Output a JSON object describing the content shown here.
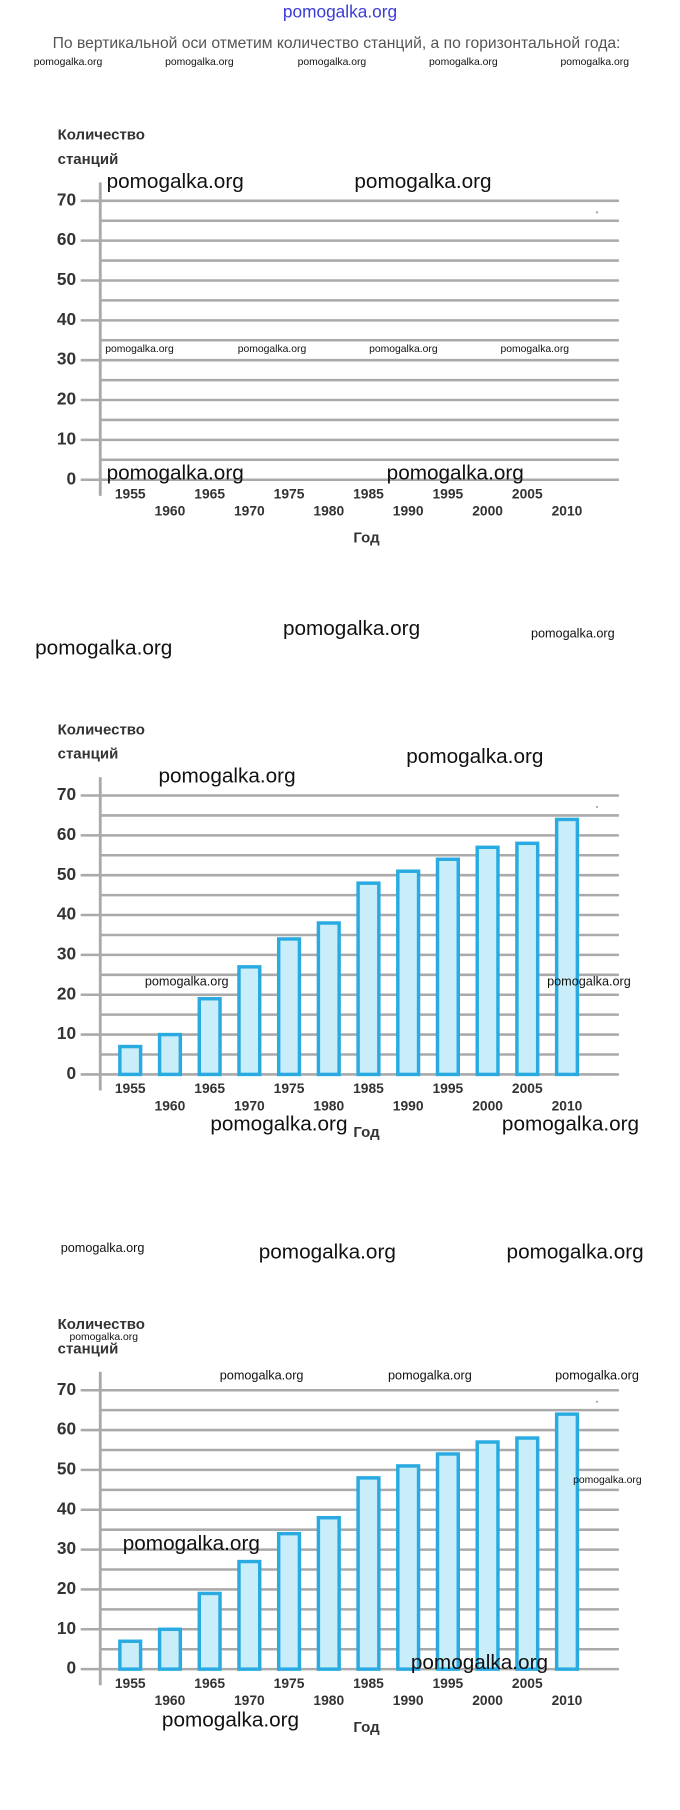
{
  "header": "pomogalka.org",
  "caption": "По вертикальной оси отметим количество станций, а по горизонтальной года:",
  "watermarks": [
    "pomogalka.org",
    "pomogalka.org",
    "pomogalka.org",
    "pomogalka.org",
    "pomogalka.org",
    "pomogalka.org",
    "pomogalka.org",
    "pomogalka.org",
    "pomogalka.org",
    "pomogalka.org",
    "pomogalka.org",
    "pomogalka.org",
    "pomogalka.org",
    "pomogalka.org",
    "pomogalka.org",
    "pomogalka.org",
    "pomogalka.org",
    "pomogalka.org",
    "pomogalka.org",
    "pomogalka.org",
    "pomogalka.org",
    "pomogalka.org",
    "pomogalka.org",
    "pomogalka.org",
    "pomogalka.org",
    "pomogalka.org",
    "pomogalka.org",
    "pomogalka.org",
    "pomogalka.org",
    "pomogalka.org",
    "pomogalka.org",
    "pomogalka.org",
    "pomogalka.org"
  ],
  "chart_data": [
    {
      "type": "bar",
      "ylabel": "Количество станций",
      "xlabel": "Год",
      "categories": [
        "1955",
        "1960",
        "1965",
        "1970",
        "1975",
        "1980",
        "1985",
        "1990",
        "1995",
        "2000",
        "2005",
        "2010"
      ],
      "values": [
        null,
        null,
        null,
        null,
        null,
        null,
        null,
        null,
        null,
        null,
        null,
        null
      ],
      "color": "#c9eef9",
      "edge_color": "#29abe2",
      "ylim": [
        0,
        70
      ],
      "yticks": [
        0,
        10,
        20,
        30,
        40,
        50,
        60,
        70
      ],
      "minor_yticks": [
        5,
        15,
        25,
        35,
        45,
        55,
        65
      ],
      "grid": true
    },
    {
      "type": "bar",
      "ylabel": "Количество станций",
      "xlabel": "Год",
      "categories": [
        "1955",
        "1960",
        "1965",
        "1970",
        "1975",
        "1980",
        "1985",
        "1990",
        "1995",
        "2000",
        "2005",
        "2010"
      ],
      "values": [
        7,
        10,
        19,
        27,
        34,
        38,
        48,
        51,
        54,
        57,
        58,
        64
      ],
      "color": "#c9eef9",
      "edge_color": "#29abe2",
      "ylim": [
        0,
        70
      ],
      "yticks": [
        0,
        10,
        20,
        30,
        40,
        50,
        60,
        70
      ],
      "minor_yticks": [
        5,
        15,
        25,
        35,
        45,
        55,
        65
      ],
      "grid": true
    },
    {
      "type": "bar",
      "ylabel": "Количество станций",
      "xlabel": "Год",
      "categories": [
        "1955",
        "1960",
        "1965",
        "1970",
        "1975",
        "1980",
        "1985",
        "1990",
        "1995",
        "2000",
        "2005",
        "2010"
      ],
      "values": [
        7,
        10,
        19,
        27,
        34,
        38,
        48,
        51,
        54,
        57,
        58,
        64
      ],
      "color": "#c9eef9",
      "edge_color": "#29abe2",
      "ylim": [
        0,
        70
      ],
      "yticks": [
        0,
        10,
        20,
        30,
        40,
        50,
        60,
        70
      ],
      "minor_yticks": [
        5,
        15,
        25,
        35,
        45,
        55,
        65
      ],
      "grid": true
    }
  ]
}
